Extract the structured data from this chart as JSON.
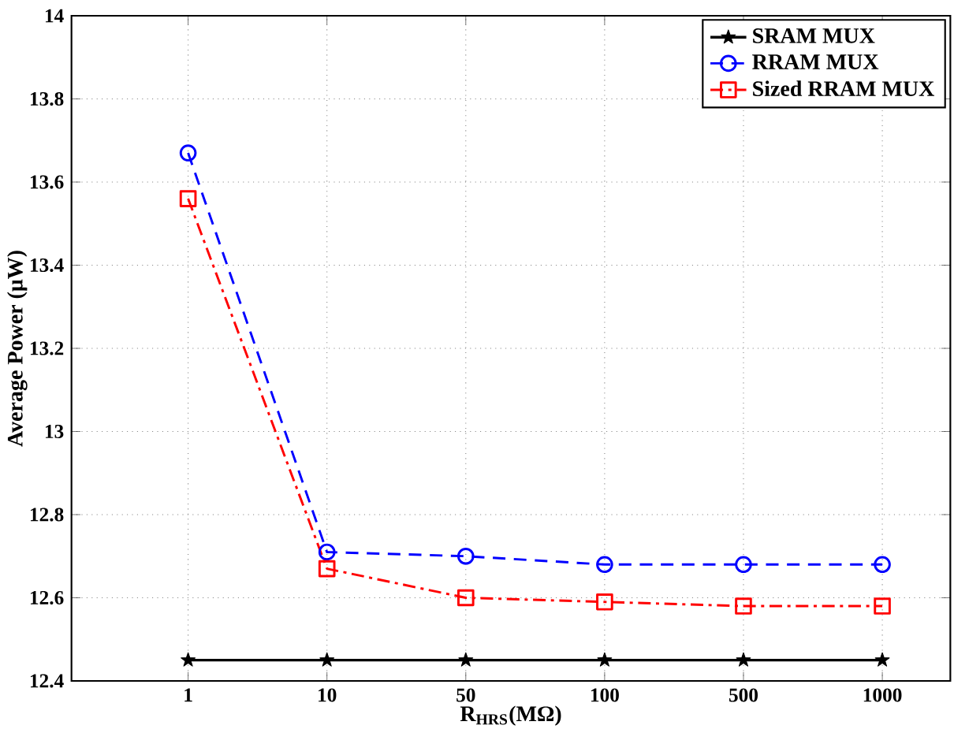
{
  "chart_data": {
    "type": "line",
    "xlabel": "R$_{HRS}$(MΩ)",
    "ylabel": "Average Power (μW)",
    "categories": [
      "1",
      "10",
      "50",
      "100",
      "500",
      "1000"
    ],
    "ylim": [
      12.4,
      14
    ],
    "yticks": [
      12.4,
      12.6,
      12.8,
      13,
      13.2,
      13.4,
      13.6,
      13.8,
      14
    ],
    "grid": true,
    "legend": "top right",
    "series": [
      {
        "name": "SRAM MUX",
        "color": "#000000",
        "marker": "star",
        "line_style": "solid",
        "values": [
          12.45,
          12.45,
          12.45,
          12.45,
          12.45,
          12.45
        ]
      },
      {
        "name": "RRAM MUX",
        "color": "#0000ff",
        "marker": "circle",
        "line_style": "dashed",
        "values": [
          13.67,
          12.71,
          12.7,
          12.68,
          12.68,
          12.68
        ]
      },
      {
        "name": "Sized RRAM MUX",
        "color": "#ff0000",
        "marker": "square",
        "line_style": "dashdot",
        "values": [
          13.56,
          12.67,
          12.6,
          12.59,
          12.58,
          12.58
        ]
      }
    ]
  }
}
